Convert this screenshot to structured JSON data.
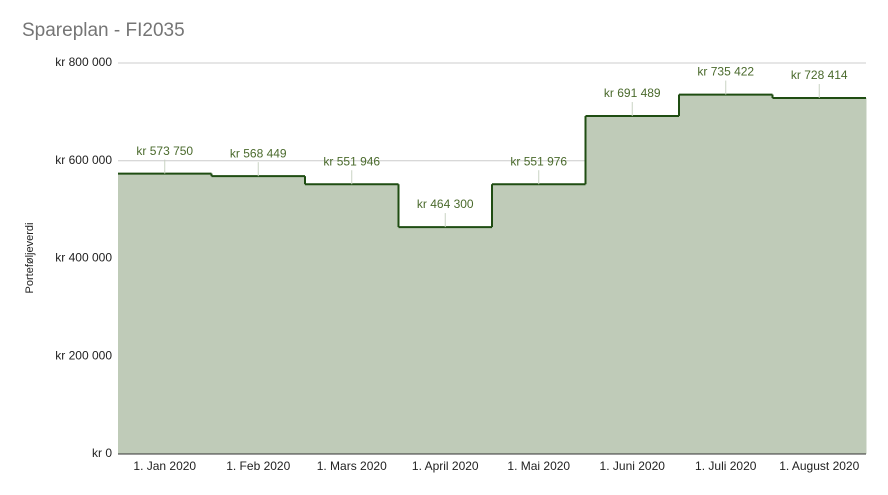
{
  "chart_data": {
    "type": "steppedArea",
    "title": "Spareplan - FI2035",
    "y_label": "Porteføljeverdi",
    "categories": [
      "1. Jan 2020",
      "1. Feb 2020",
      "1. Mars 2020",
      "1. April 2020",
      "1. Mai 2020",
      "1. Juni 2020",
      "1. Juli 2020",
      "1. August 2020"
    ],
    "values": [
      573750,
      568449,
      551946,
      464300,
      551976,
      691489,
      735422,
      728414
    ],
    "value_labels": [
      "kr 573 750",
      "kr 568 449",
      "kr 551 946",
      "kr 464 300",
      "kr 551 976",
      "kr 691 489",
      "kr 735 422",
      "kr 728 414"
    ],
    "color": "#1f4d12",
    "fill": "#bfcbb8",
    "ylim": [
      0,
      800000
    ],
    "yticks": [
      {
        "value": 0,
        "label": "kr 0"
      },
      {
        "value": 200000,
        "label": "kr 200 000"
      },
      {
        "value": 400000,
        "label": "kr 400 000"
      },
      {
        "value": 600000,
        "label": "kr 600 000"
      },
      {
        "value": 800000,
        "label": "kr 800 000"
      }
    ],
    "grid": true
  }
}
